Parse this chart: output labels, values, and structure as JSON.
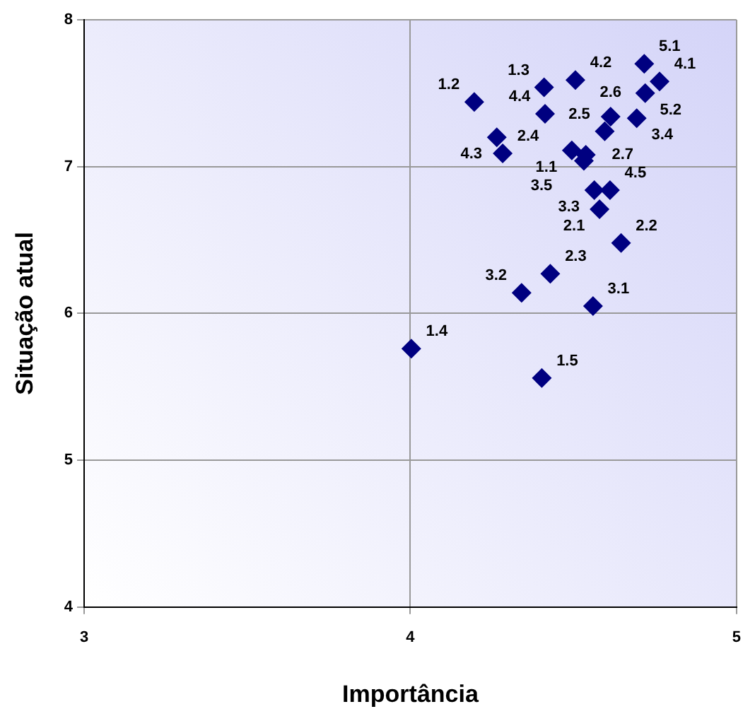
{
  "chart_data": {
    "type": "scatter",
    "xlabel": "Importância",
    "ylabel": "Situação atual",
    "xlim": [
      3,
      5
    ],
    "ylim": [
      4,
      8
    ],
    "xticks": [
      3,
      4,
      5
    ],
    "yticks": [
      4,
      5,
      6,
      7,
      8
    ],
    "grid": true,
    "legend": false,
    "marker": "diamond",
    "series": [
      {
        "color": "#000080",
        "x": [
          4.196,
          4.41,
          4.506,
          4.717,
          4.764,
          4.72,
          4.413,
          4.614,
          4.694,
          4.596,
          4.265,
          4.283,
          4.495,
          4.538,
          4.532,
          4.564,
          4.612,
          4.58,
          4.646,
          4.429,
          4.341,
          4.56,
          4.003,
          4.403
        ],
        "values": [
          7.44,
          7.54,
          7.59,
          7.7,
          7.58,
          7.5,
          7.36,
          7.34,
          7.33,
          7.24,
          7.2,
          7.09,
          7.11,
          7.08,
          7.04,
          6.84,
          6.84,
          6.71,
          6.48,
          6.27,
          6.14,
          6.05,
          5.76,
          5.56
        ]
      }
    ],
    "annotations": [
      {
        "text": "5.1",
        "x": 4.717,
        "y": 7.7
      },
      {
        "text": "4.2",
        "x": 4.506,
        "y": 7.59
      },
      {
        "text": "4.1",
        "x": 4.764,
        "y": 7.58
      },
      {
        "text": "1.3",
        "x": 4.41,
        "y": 7.54
      },
      {
        "text": "1.2",
        "x": 4.196,
        "y": 7.44
      },
      {
        "text": "2.6",
        "x": 4.614,
        "y": 7.34
      },
      {
        "text": "5.2",
        "x": 4.72,
        "y": 7.5
      },
      {
        "text": "4.4",
        "x": 4.413,
        "y": 7.36
      },
      {
        "text": "2.5",
        "x": 4.596,
        "y": 7.24
      },
      {
        "text": "3.4",
        "x": 4.694,
        "y": 7.33
      },
      {
        "text": "4.3",
        "x": 4.265,
        "y": 7.2
      },
      {
        "text": "1.1",
        "x": 4.495,
        "y": 7.11
      },
      {
        "text": "2.7",
        "x": 4.538,
        "y": 7.08
      },
      {
        "text": "2.4",
        "x": 4.283,
        "y": 7.09
      },
      {
        "text": "3.5",
        "x": 4.532,
        "y": 7.04
      },
      {
        "text": "4.5",
        "x": 4.612,
        "y": 6.84
      },
      {
        "text": "3.3",
        "x": 4.564,
        "y": 6.84
      },
      {
        "text": "2.1",
        "x": 4.58,
        "y": 6.71
      },
      {
        "text": "2.3",
        "x": 4.429,
        "y": 6.27
      },
      {
        "text": "3.2",
        "x": 4.341,
        "y": 6.14
      },
      {
        "text": "2.2",
        "x": 4.646,
        "y": 6.48
      },
      {
        "text": "3.1",
        "x": 4.56,
        "y": 6.05
      },
      {
        "text": "1.4",
        "x": 4.003,
        "y": 5.76
      },
      {
        "text": "1.5",
        "x": 4.403,
        "y": 5.56
      }
    ]
  }
}
